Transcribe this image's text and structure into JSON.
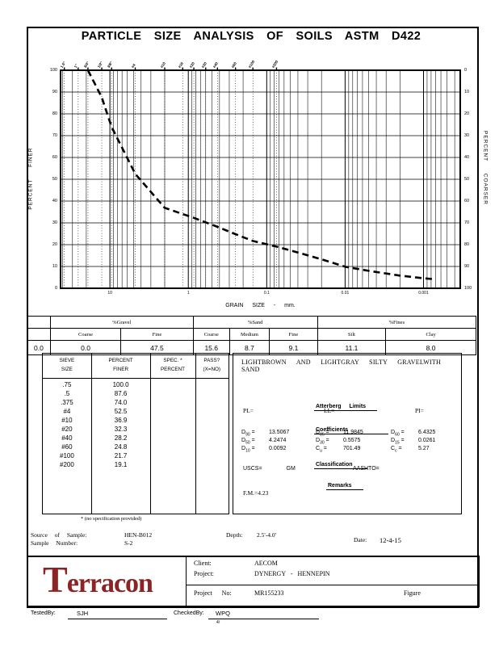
{
  "title": "PARTICLE SIZE ANALYSIS OF SOILS ASTM D422",
  "chart_data": {
    "type": "line",
    "x_scale": "log",
    "x_min_mm": 42.6,
    "x_max_mm": 0.00034,
    "x_ticks": [
      {
        "label": "10",
        "mm": 10
      },
      {
        "label": "1",
        "mm": 1
      },
      {
        "label": "0.1",
        "mm": 0.1
      },
      {
        "label": "0.01",
        "mm": 0.01
      },
      {
        "label": "0.001",
        "mm": 0.001
      }
    ],
    "y_min": 0,
    "y_max": 100,
    "y_step": 10,
    "xlabel": "GRAIN SIZE - mm.",
    "ylabel_left": "PERCENT FINER",
    "ylabel_right": "PERCENT COARSER",
    "grid": true,
    "top_sieve_labels": [
      {
        "label": "1.5\"",
        "mm": 38.1
      },
      {
        "label": "1\"",
        "mm": 25.4
      },
      {
        "label": "3/4\"",
        "mm": 19.05
      },
      {
        "label": "1/2\"",
        "mm": 12.7
      },
      {
        "label": "3/8\"",
        "mm": 9.525
      },
      {
        "label": "#4",
        "mm": 4.75
      },
      {
        "label": "#10",
        "mm": 2.0
      },
      {
        "label": "#16",
        "mm": 1.18
      },
      {
        "label": "#20",
        "mm": 0.85
      },
      {
        "label": "#30",
        "mm": 0.6
      },
      {
        "label": "#40",
        "mm": 0.425
      },
      {
        "label": "#60",
        "mm": 0.25
      },
      {
        "label": "#100",
        "mm": 0.15
      },
      {
        "label": "#200",
        "mm": 0.075
      }
    ],
    "series": [
      {
        "name": "grain-size-distribution",
        "style": "dashed",
        "points": [
          [
            19.05,
            100.0
          ],
          [
            12.7,
            87.6
          ],
          [
            9.525,
            74.0
          ],
          [
            4.75,
            52.5
          ],
          [
            2.0,
            36.9
          ],
          [
            0.85,
            32.3
          ],
          [
            0.425,
            28.2
          ],
          [
            0.25,
            24.8
          ],
          [
            0.15,
            21.7
          ],
          [
            0.075,
            19.1
          ],
          [
            0.04,
            16.4
          ],
          [
            0.02,
            13.3
          ],
          [
            0.01,
            9.9
          ],
          [
            0.005,
            8.0
          ],
          [
            0.002,
            5.8
          ],
          [
            0.001,
            4.6
          ],
          [
            0.0007,
            4.1
          ]
        ]
      }
    ]
  },
  "summary_table": {
    "col0_value": "0.0",
    "groups": [
      {
        "label": "%Gravel",
        "sub": [
          "Coarse",
          "Fine"
        ],
        "values": [
          "0.0",
          "47.5"
        ]
      },
      {
        "label": "%Sand",
        "sub": [
          "Coarse",
          "Medium",
          "Fine"
        ],
        "values": [
          "15.6",
          "8.7",
          "9.1"
        ]
      },
      {
        "label": "%Fines",
        "sub": [
          "Silt",
          "Clay"
        ],
        "values": [
          "11.1",
          "8.0"
        ]
      }
    ]
  },
  "sieve_table": {
    "headers": [
      [
        "SIEVE",
        "SIZE"
      ],
      [
        "PERCENT",
        "FINER"
      ],
      [
        "SPEC. *",
        "PERCENT"
      ],
      [
        "PASS?",
        "(X=NO)"
      ]
    ],
    "rows": [
      [
        ".75",
        "100.0"
      ],
      [
        ".5",
        "87.6"
      ],
      [
        ".375",
        "74.0"
      ],
      [
        "#4",
        "52.5"
      ],
      [
        "#10",
        "36.9"
      ],
      [
        "#20",
        "32.3"
      ],
      [
        "#40",
        "28.2"
      ],
      [
        "#60",
        "24.8"
      ],
      [
        "#100",
        "21.7"
      ],
      [
        "#200",
        "19.1"
      ]
    ]
  },
  "footnote": "* (no specification provided)",
  "description": {
    "text": "LIGHTBROWN AND LIGHTGRAY SILTY GRAVELWITH SAND"
  },
  "atterberg": {
    "heading": "Atterberg Limits",
    "pl_label": "PL=",
    "ll_label": "LL=",
    "pi_label": "PI="
  },
  "coefficients": {
    "heading": "Coefficients",
    "entries": [
      {
        "base": "D",
        "sub": "90",
        "value": "13.5067"
      },
      {
        "base": "D",
        "sub": "85",
        "value": "11.9845"
      },
      {
        "base": "D",
        "sub": "60",
        "value": "6.4325"
      },
      {
        "base": "D",
        "sub": "50",
        "value": "4.2474"
      },
      {
        "base": "D",
        "sub": "30",
        "value": "0.5575"
      },
      {
        "base": "D",
        "sub": "15",
        "value": "0.0261"
      },
      {
        "base": "D",
        "sub": "10",
        "value": "0.0092"
      },
      {
        "base": "C",
        "sub": "u",
        "value": "701.49"
      },
      {
        "base": "C",
        "sub": "c",
        "value": "5.27"
      }
    ]
  },
  "classification": {
    "heading": "Classification",
    "uscs_label": "USCS=",
    "uscs_value": "GM",
    "aashto_label": "AASHTO="
  },
  "remarks": {
    "heading": "Remarks"
  },
  "fm_value": "F.M.=4.23",
  "sample_info": {
    "source_label": "Source of Sample:",
    "source_value": "HEN-B012",
    "depth_label": "Depth:",
    "depth_value": "2.5'-4.0'",
    "number_label": "Sample Number:",
    "number_value": "S-2",
    "date_label": "Date:",
    "date_value": "12-4-15"
  },
  "footer": {
    "brand": "Terracon",
    "client_label": "Client:",
    "client": "AECOM",
    "project_label": "Project:",
    "project": "DYNERGY - HENNEPIN",
    "project_no_label": "Project No:",
    "project_no": "MR155233",
    "figure_label": "Figure"
  },
  "signoff": {
    "tested_label": "TestedBy:",
    "tested": "SJH",
    "checked_label": "CheckedBy:",
    "checked": "WPQ",
    "note": "4/"
  },
  "colors": {
    "brand_maroon": "#8b2525",
    "ink": "#000000"
  }
}
